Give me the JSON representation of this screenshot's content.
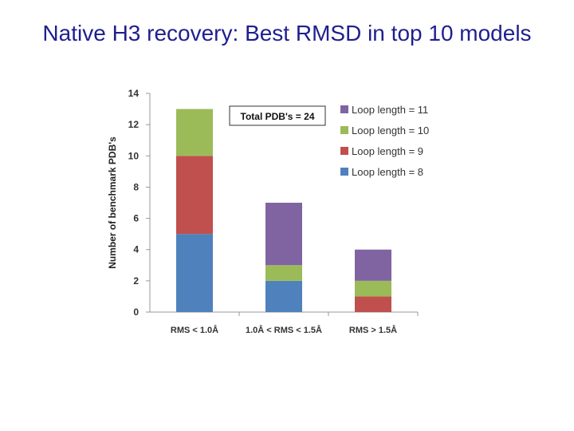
{
  "slide": {
    "title": "Native H3 recovery: Best RMSD in top 10 models"
  },
  "chart_data": {
    "type": "bar",
    "stacked": true,
    "categories": [
      "RMS < 1.0Å",
      "1.0Å < RMS < 1.5Å",
      "RMS > 1.5Å"
    ],
    "series": [
      {
        "name": "Loop length = 8",
        "color": "#4f81bd",
        "values": [
          5,
          2,
          0
        ]
      },
      {
        "name": "Loop length = 9",
        "color": "#c0504d",
        "values": [
          5,
          0,
          1
        ]
      },
      {
        "name": "Loop length = 10",
        "color": "#9bbb59",
        "values": [
          3,
          1,
          1
        ]
      },
      {
        "name": "Loop length = 11",
        "color": "#8064a2",
        "values": [
          0,
          4,
          2
        ]
      }
    ],
    "title": "",
    "xlabel": "",
    "ylabel": "Number of benchmark PDB's",
    "ylim": [
      0,
      14
    ],
    "yticks": [
      0,
      2,
      4,
      6,
      8,
      10,
      12,
      14
    ],
    "grid": false,
    "legend_position": "right",
    "legend_order": "reverse",
    "annotation": "Total PDB's = 24"
  }
}
